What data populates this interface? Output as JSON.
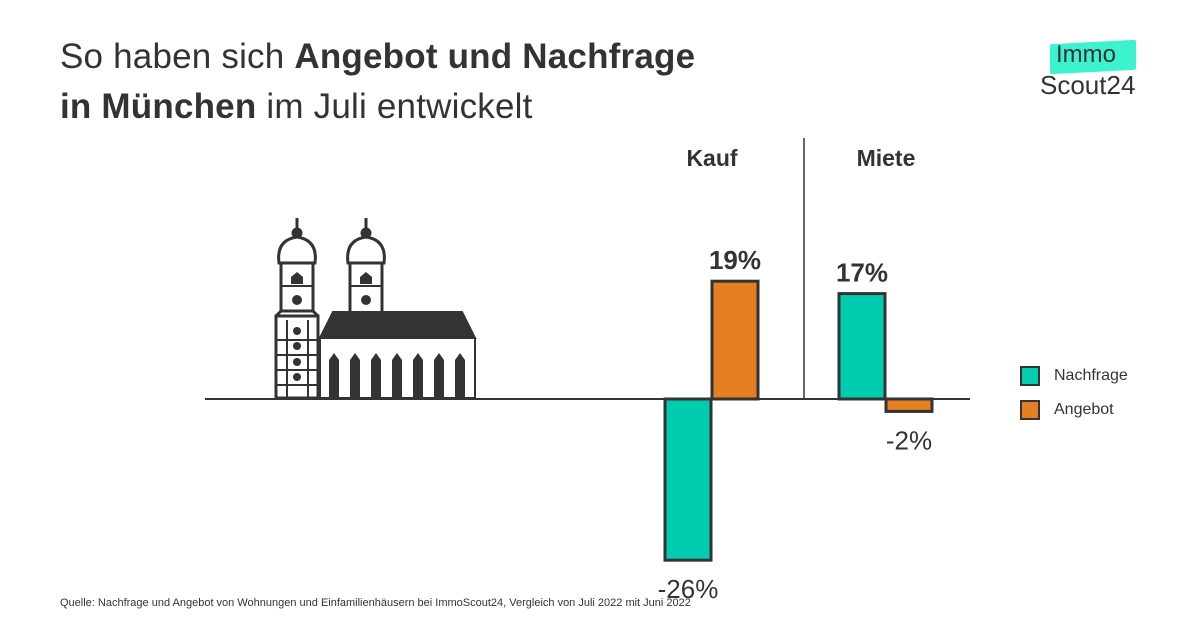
{
  "title": {
    "line1_regular": "So haben sich ",
    "line1_bold": "Angebot und Nachfrage",
    "line2_bold": "in München",
    "line2_regular": " im Juli entwickelt"
  },
  "logo": {
    "top": "Immo",
    "bottom": "Scout24",
    "accent": "#3df2cf"
  },
  "illustration": "frauenkirche-munich-icon",
  "colors": {
    "nachfrage": "#00cdb0",
    "angebot": "#e67e22",
    "outline": "#333333"
  },
  "chart_data": {
    "type": "bar",
    "title": "So haben sich Angebot und Nachfrage in München im Juli entwickelt",
    "categories": [
      "Kauf",
      "Miete"
    ],
    "series": [
      {
        "name": "Nachfrage",
        "values": [
          -26,
          17
        ],
        "labels": [
          "-26%",
          "17%"
        ]
      },
      {
        "name": "Angebot",
        "values": [
          19,
          -2
        ],
        "labels": [
          "19%",
          "-2%"
        ]
      }
    ],
    "unit": "%",
    "xlabel": "",
    "ylabel": "",
    "grid": false,
    "legend_position": "right"
  },
  "legend": [
    {
      "label": "Nachfrage"
    },
    {
      "label": "Angebot"
    }
  ],
  "source": "Quelle: Nachfrage und Angebot von Wohnungen und Einfamilienhäusern bei ImmoScout24, Vergleich von Juli 2022 mit Juni 2022"
}
